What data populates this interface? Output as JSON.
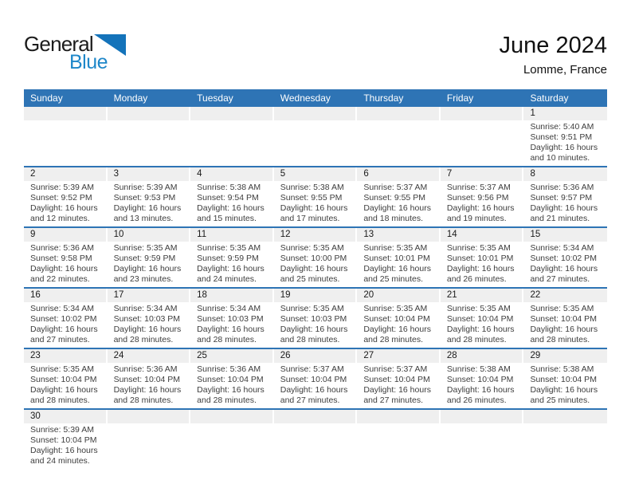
{
  "logo": {
    "text_black": "General",
    "text_blue": "Blue"
  },
  "header": {
    "title": "June 2024",
    "subtitle": "Lomme, France"
  },
  "weekdays": [
    "Sunday",
    "Monday",
    "Tuesday",
    "Wednesday",
    "Thursday",
    "Friday",
    "Saturday"
  ],
  "colors": {
    "header_bar_blue": "#2E74B5",
    "row_separator_blue": "#2E74B5",
    "day_number_strip_gray": "#EFEFEF",
    "logo_blue": "#1E87C9",
    "logo_triangle_blue": "#1473BA",
    "weekday_text": "#FFFFFF",
    "detail_text": "#3D3D3D"
  },
  "weeks": [
    [
      null,
      null,
      null,
      null,
      null,
      null,
      {
        "day": "1",
        "sunrise": "Sunrise: 5:40 AM",
        "sunset": "Sunset: 9:51 PM",
        "daylight": "Daylight: 16 hours and 10 minutes."
      }
    ],
    [
      {
        "day": "2",
        "sunrise": "Sunrise: 5:39 AM",
        "sunset": "Sunset: 9:52 PM",
        "daylight": "Daylight: 16 hours and 12 minutes."
      },
      {
        "day": "3",
        "sunrise": "Sunrise: 5:39 AM",
        "sunset": "Sunset: 9:53 PM",
        "daylight": "Daylight: 16 hours and 13 minutes."
      },
      {
        "day": "4",
        "sunrise": "Sunrise: 5:38 AM",
        "sunset": "Sunset: 9:54 PM",
        "daylight": "Daylight: 16 hours and 15 minutes."
      },
      {
        "day": "5",
        "sunrise": "Sunrise: 5:38 AM",
        "sunset": "Sunset: 9:55 PM",
        "daylight": "Daylight: 16 hours and 17 minutes."
      },
      {
        "day": "6",
        "sunrise": "Sunrise: 5:37 AM",
        "sunset": "Sunset: 9:55 PM",
        "daylight": "Daylight: 16 hours and 18 minutes."
      },
      {
        "day": "7",
        "sunrise": "Sunrise: 5:37 AM",
        "sunset": "Sunset: 9:56 PM",
        "daylight": "Daylight: 16 hours and 19 minutes."
      },
      {
        "day": "8",
        "sunrise": "Sunrise: 5:36 AM",
        "sunset": "Sunset: 9:57 PM",
        "daylight": "Daylight: 16 hours and 21 minutes."
      }
    ],
    [
      {
        "day": "9",
        "sunrise": "Sunrise: 5:36 AM",
        "sunset": "Sunset: 9:58 PM",
        "daylight": "Daylight: 16 hours and 22 minutes."
      },
      {
        "day": "10",
        "sunrise": "Sunrise: 5:35 AM",
        "sunset": "Sunset: 9:59 PM",
        "daylight": "Daylight: 16 hours and 23 minutes."
      },
      {
        "day": "11",
        "sunrise": "Sunrise: 5:35 AM",
        "sunset": "Sunset: 9:59 PM",
        "daylight": "Daylight: 16 hours and 24 minutes."
      },
      {
        "day": "12",
        "sunrise": "Sunrise: 5:35 AM",
        "sunset": "Sunset: 10:00 PM",
        "daylight": "Daylight: 16 hours and 25 minutes."
      },
      {
        "day": "13",
        "sunrise": "Sunrise: 5:35 AM",
        "sunset": "Sunset: 10:01 PM",
        "daylight": "Daylight: 16 hours and 25 minutes."
      },
      {
        "day": "14",
        "sunrise": "Sunrise: 5:35 AM",
        "sunset": "Sunset: 10:01 PM",
        "daylight": "Daylight: 16 hours and 26 minutes."
      },
      {
        "day": "15",
        "sunrise": "Sunrise: 5:34 AM",
        "sunset": "Sunset: 10:02 PM",
        "daylight": "Daylight: 16 hours and 27 minutes."
      }
    ],
    [
      {
        "day": "16",
        "sunrise": "Sunrise: 5:34 AM",
        "sunset": "Sunset: 10:02 PM",
        "daylight": "Daylight: 16 hours and 27 minutes."
      },
      {
        "day": "17",
        "sunrise": "Sunrise: 5:34 AM",
        "sunset": "Sunset: 10:03 PM",
        "daylight": "Daylight: 16 hours and 28 minutes."
      },
      {
        "day": "18",
        "sunrise": "Sunrise: 5:34 AM",
        "sunset": "Sunset: 10:03 PM",
        "daylight": "Daylight: 16 hours and 28 minutes."
      },
      {
        "day": "19",
        "sunrise": "Sunrise: 5:35 AM",
        "sunset": "Sunset: 10:03 PM",
        "daylight": "Daylight: 16 hours and 28 minutes."
      },
      {
        "day": "20",
        "sunrise": "Sunrise: 5:35 AM",
        "sunset": "Sunset: 10:04 PM",
        "daylight": "Daylight: 16 hours and 28 minutes."
      },
      {
        "day": "21",
        "sunrise": "Sunrise: 5:35 AM",
        "sunset": "Sunset: 10:04 PM",
        "daylight": "Daylight: 16 hours and 28 minutes."
      },
      {
        "day": "22",
        "sunrise": "Sunrise: 5:35 AM",
        "sunset": "Sunset: 10:04 PM",
        "daylight": "Daylight: 16 hours and 28 minutes."
      }
    ],
    [
      {
        "day": "23",
        "sunrise": "Sunrise: 5:35 AM",
        "sunset": "Sunset: 10:04 PM",
        "daylight": "Daylight: 16 hours and 28 minutes."
      },
      {
        "day": "24",
        "sunrise": "Sunrise: 5:36 AM",
        "sunset": "Sunset: 10:04 PM",
        "daylight": "Daylight: 16 hours and 28 minutes."
      },
      {
        "day": "25",
        "sunrise": "Sunrise: 5:36 AM",
        "sunset": "Sunset: 10:04 PM",
        "daylight": "Daylight: 16 hours and 28 minutes."
      },
      {
        "day": "26",
        "sunrise": "Sunrise: 5:37 AM",
        "sunset": "Sunset: 10:04 PM",
        "daylight": "Daylight: 16 hours and 27 minutes."
      },
      {
        "day": "27",
        "sunrise": "Sunrise: 5:37 AM",
        "sunset": "Sunset: 10:04 PM",
        "daylight": "Daylight: 16 hours and 27 minutes."
      },
      {
        "day": "28",
        "sunrise": "Sunrise: 5:38 AM",
        "sunset": "Sunset: 10:04 PM",
        "daylight": "Daylight: 16 hours and 26 minutes."
      },
      {
        "day": "29",
        "sunrise": "Sunrise: 5:38 AM",
        "sunset": "Sunset: 10:04 PM",
        "daylight": "Daylight: 16 hours and 25 minutes."
      }
    ],
    [
      {
        "day": "30",
        "sunrise": "Sunrise: 5:39 AM",
        "sunset": "Sunset: 10:04 PM",
        "daylight": "Daylight: 16 hours and 24 minutes."
      },
      null,
      null,
      null,
      null,
      null,
      null
    ]
  ]
}
